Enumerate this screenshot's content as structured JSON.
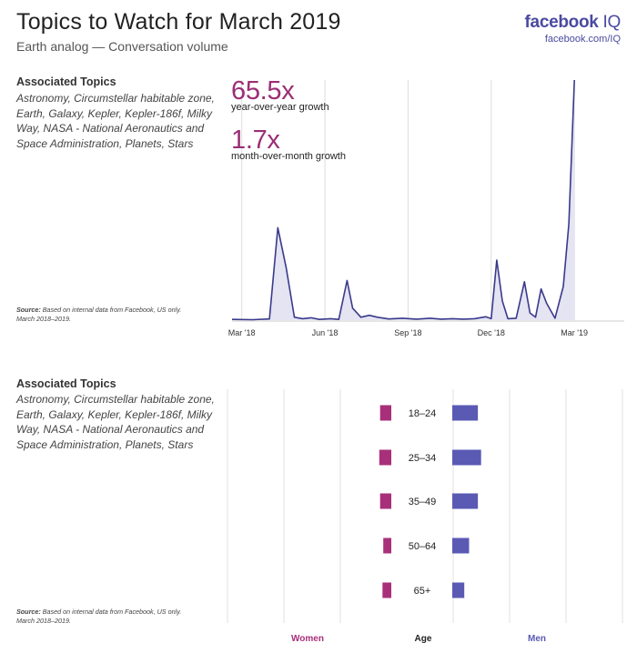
{
  "header": {
    "title": "Topics to Watch for March 2019",
    "subtitle": "Earth analog — Conversation volume",
    "brand": "facebook",
    "brand_suffix": "IQ",
    "brand_url": "facebook.com/IQ"
  },
  "top_panel": {
    "topics_heading": "Associated Topics",
    "topics_body": "Astronomy, Circumstellar habitable zone, Earth, Galaxy, Kepler, Kepler-186f, Milky Way, NASA - National Aeronautics and Space Administration, Planets, Stars",
    "source_label": "Source:",
    "source_text": "Based on internal data from Facebook, US only.",
    "source_period": "March 2018–2019.",
    "metric1_value": "65.5x",
    "metric1_label": "year-over-year growth",
    "metric2_value": "1.7x",
    "metric2_label": "month-over-month growth"
  },
  "bottom_panel": {
    "topics_heading": "Associated Topics",
    "topics_body": "Astronomy, Circumstellar habitable zone, Earth, Galaxy, Kepler, Kepler-186f, Milky Way, NASA - National Aeronautics and Space Administration, Planets, Stars",
    "source_label": "Source:",
    "source_text": "Based on internal data from Facebook, US only.",
    "source_period": "March 2018–2019.",
    "legend_women": "Women",
    "legend_age": "Age",
    "legend_men": "Men"
  },
  "colors": {
    "line": "#3a3a8c",
    "area": "#e4e4f2",
    "women": "#a8307a",
    "men": "#5a5ab4",
    "grid": "#dddddd"
  },
  "chart_data": [
    {
      "type": "area",
      "title": "Earth analog — Conversation volume",
      "x_ticks": [
        "Mar '18",
        "Jun '18",
        "Sep '18",
        "Dec '18",
        "Mar '19"
      ],
      "x_tick_positions": [
        0,
        3,
        6,
        9,
        12
      ],
      "x_range": [
        -0.35,
        13.8
      ],
      "ylim": [
        0,
        100
      ],
      "grid": "vertical",
      "series": [
        {
          "x": [
            -0.35,
            0.4,
            1.0,
            1.3,
            1.6,
            1.9,
            2.2,
            2.5,
            2.8,
            3.2,
            3.5,
            3.8,
            4.0,
            4.3,
            4.6,
            4.9,
            5.3,
            5.8,
            6.3,
            6.8,
            7.2,
            7.6,
            8.0,
            8.4,
            8.8,
            9.0,
            9.2,
            9.4,
            9.6,
            9.9,
            10.2,
            10.4,
            10.6,
            10.8,
            11.0,
            11.3,
            11.6,
            11.8,
            12.0
          ],
          "y": [
            0.3,
            0.2,
            0.5,
            38.5,
            22,
            1.2,
            0.6,
            1.0,
            0.3,
            0.6,
            0.3,
            16.5,
            5,
            1.2,
            2.0,
            1.2,
            0.5,
            0.8,
            0.4,
            0.8,
            0.4,
            0.6,
            0.4,
            0.6,
            1.4,
            0.6,
            25,
            8,
            0.6,
            0.8,
            16,
            3,
            1.2,
            13,
            7,
            0.8,
            14,
            40,
            100
          ]
        }
      ]
    },
    {
      "type": "bar",
      "orientation": "horizontal",
      "categories": [
        "18–24",
        "25–34",
        "35–49",
        "50–64",
        "65+"
      ],
      "series": [
        {
          "name": "Women",
          "values": [
            14,
            15,
            14,
            10,
            11
          ]
        },
        {
          "name": "Men",
          "values": [
            32,
            36,
            32,
            21,
            15
          ]
        }
      ]
    }
  ]
}
